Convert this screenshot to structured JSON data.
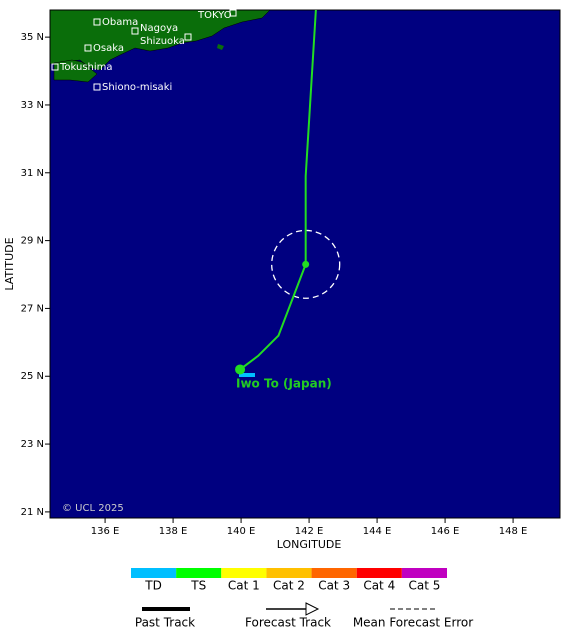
{
  "chart_data": {
    "type": "track-map",
    "xlabel": "LONGITUDE",
    "ylabel": "LATITUDE",
    "xlim": [
      134.38,
      149.38
    ],
    "ylim": [
      20.82,
      35.8
    ],
    "xticks": [
      {
        "value": 136,
        "label": "136 E"
      },
      {
        "value": 138,
        "label": "138 E"
      },
      {
        "value": 140,
        "label": "140 E"
      },
      {
        "value": 142,
        "label": "142 E"
      },
      {
        "value": 144,
        "label": "144 E"
      },
      {
        "value": 146,
        "label": "146 E"
      },
      {
        "value": 148,
        "label": "148 E"
      }
    ],
    "yticks": [
      {
        "value": 21,
        "label": "21 N"
      },
      {
        "value": 23,
        "label": "23 N"
      },
      {
        "value": 25,
        "label": "25 N"
      },
      {
        "value": 27,
        "label": "27 N"
      },
      {
        "value": 29,
        "label": "29 N"
      },
      {
        "value": 31,
        "label": "31 N"
      },
      {
        "value": 33,
        "label": "33 N"
      },
      {
        "value": 35,
        "label": "35 N"
      }
    ],
    "cities": [
      "Obama",
      "Nagoya",
      "Osaka",
      "Shizuoka",
      "TOKYO",
      "Tokushima",
      "Shiono-misaki"
    ],
    "place_label": "Iwo To (Japan)",
    "copyright": "© UCL 2025",
    "track": {
      "color": "#22dd22",
      "lon": [
        139.97,
        140.5,
        141.1,
        141.9,
        141.9,
        142.2
      ],
      "lat": [
        25.2,
        25.6,
        26.2,
        28.3,
        30.9,
        35.8
      ]
    },
    "error_circle": {
      "lon": 141.9,
      "lat": 28.3,
      "radius": 1.0
    },
    "intensity_legend": [
      {
        "name": "TD",
        "color": "#00bfff"
      },
      {
        "name": "TS",
        "color": "#00ff00"
      },
      {
        "name": "Cat 1",
        "color": "#ffff00"
      },
      {
        "name": "Cat 2",
        "color": "#ffc000"
      },
      {
        "name": "Cat 3",
        "color": "#ff6600"
      },
      {
        "name": "Cat 4",
        "color": "#ff0000"
      },
      {
        "name": "Cat 5",
        "color": "#c000c0"
      }
    ],
    "track_legend": [
      "Past Track",
      "Forecast Track",
      "Mean Forecast Error"
    ]
  }
}
